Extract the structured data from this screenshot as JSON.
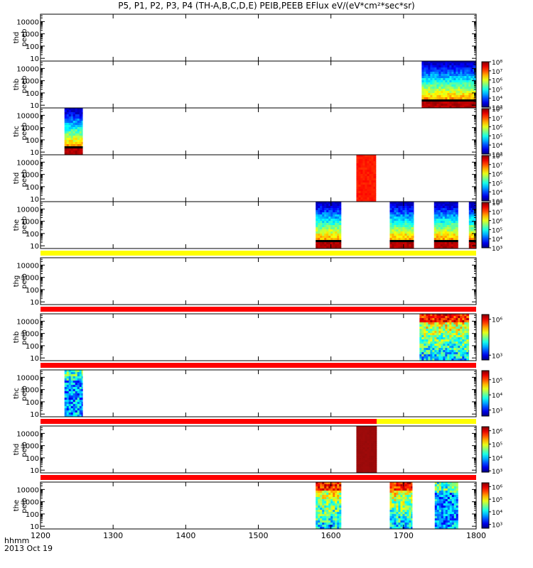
{
  "title": "P5, P1, P2, P3, P4 (TH-A,B,C,D,E) PEIB,PEEB EFlux eV/(eV*cm²*sec*sr)",
  "footer": {
    "time_label": "hhmm",
    "date": "2013 Oct 19"
  },
  "chart_data": {
    "type": "heatmap",
    "x_ticks": [
      "1200",
      "1300",
      "1400",
      "1500",
      "1600",
      "1700",
      "1800"
    ],
    "xlim": [
      "1200",
      "1800"
    ],
    "y_scale": "log",
    "y_ticks": [
      "10",
      "100",
      "1000",
      "10000"
    ],
    "grid": false,
    "panels": [
      {
        "label": [
          "thd",
          "peeb"
        ],
        "colorbar": null,
        "blocks": []
      },
      {
        "label": [
          "thb",
          "peeb"
        ],
        "colorbar": {
          "min_exp": 3,
          "max_exp": 8,
          "ticks": [
            "10³",
            "10⁴",
            "10⁵",
            "10⁶",
            "10⁷",
            "10⁸"
          ]
        },
        "blocks": [
          {
            "start": "1725",
            "end": "1800",
            "style": "electron-band"
          }
        ]
      },
      {
        "label": [
          "thc",
          "peeb"
        ],
        "colorbar": {
          "min_exp": 3,
          "max_exp": 8,
          "ticks": [
            "10³",
            "10⁴",
            "10⁵",
            "10⁶",
            "10⁷",
            "10⁸"
          ]
        },
        "blocks": [
          {
            "start": "1233",
            "end": "1258",
            "style": "electron-band"
          }
        ]
      },
      {
        "label": [
          "thd",
          "peeb"
        ],
        "colorbar": {
          "min_exp": 3,
          "max_exp": 8,
          "ticks": [
            "10³",
            "10⁴",
            "10⁵",
            "10⁶",
            "10⁷",
            "10⁸"
          ]
        },
        "blocks": [
          {
            "start": "1635",
            "end": "1662",
            "style": "orange-uniform"
          }
        ]
      },
      {
        "label": [
          "the",
          "peeb"
        ],
        "colorbar": {
          "min_exp": 3,
          "max_exp": 8,
          "ticks": [
            "10³",
            "10⁴",
            "10⁵",
            "10⁶",
            "10⁷",
            "10⁸"
          ]
        },
        "blocks": [
          {
            "start": "1579",
            "end": "1614",
            "style": "electron-band"
          },
          {
            "start": "1681",
            "end": "1714",
            "style": "electron-band"
          },
          {
            "start": "1742",
            "end": "1775",
            "style": "electron-band"
          },
          {
            "start": "1790",
            "end": "1800",
            "style": "electron-band"
          }
        ]
      },
      {
        "label": [
          "thg",
          "peib"
        ],
        "colorbar": null,
        "blocks": []
      },
      {
        "label": [
          "thb",
          "peib"
        ],
        "colorbar": {
          "min_exp": 2.6,
          "max_exp": 6.4,
          "ticks": [
            "10³",
            "10⁶"
          ]
        },
        "blocks": [
          {
            "start": "1722",
            "end": "1790",
            "style": "ion-band"
          }
        ]
      },
      {
        "label": [
          "thc",
          "peib"
        ],
        "colorbar": {
          "min_exp": 2.6,
          "max_exp": 5.6,
          "ticks": [
            "10³",
            "10⁴",
            "10⁵"
          ]
        },
        "blocks": [
          {
            "start": "1233",
            "end": "1258",
            "style": "ion-noise"
          }
        ]
      },
      {
        "label": [
          "thd",
          "peib"
        ],
        "colorbar": {
          "min_exp": 2.9,
          "max_exp": 6.3,
          "ticks": [
            "10³",
            "10⁴",
            "10⁵",
            "10⁶"
          ]
        },
        "blocks": [
          {
            "start": "1635",
            "end": "1663",
            "style": "darkred-uniform"
          }
        ]
      },
      {
        "label": [
          "the",
          "peib"
        ],
        "colorbar": {
          "min_exp": 2.7,
          "max_exp": 6.3,
          "ticks": [
            "10³",
            "10⁴",
            "10⁵",
            "10⁶"
          ]
        },
        "blocks": [
          {
            "start": "1579",
            "end": "1614",
            "style": "ion-band"
          },
          {
            "start": "1681",
            "end": "1712",
            "style": "ion-band"
          },
          {
            "start": "1743",
            "end": "1775",
            "style": "ion-noise"
          }
        ]
      }
    ],
    "mode_bars": [
      {
        "after_panel": 4,
        "segments": [
          {
            "start": "1200",
            "end": "1800",
            "color": "#ffff00"
          }
        ]
      },
      {
        "after_panel": 5,
        "segments": [
          {
            "start": "1200",
            "end": "1800",
            "color": "#ff0000"
          }
        ]
      },
      {
        "after_panel": 6,
        "segments": [
          {
            "start": "1200",
            "end": "1800",
            "color": "#ff0000"
          }
        ]
      },
      {
        "after_panel": 7,
        "segments": [
          {
            "start": "1200",
            "end": "1663",
            "color": "#ff0000"
          },
          {
            "start": "1663",
            "end": "1800",
            "color": "#ffff00"
          }
        ]
      },
      {
        "after_panel": 8,
        "segments": [
          {
            "start": "1200",
            "end": "1800",
            "color": "#ff0000"
          }
        ]
      }
    ]
  }
}
